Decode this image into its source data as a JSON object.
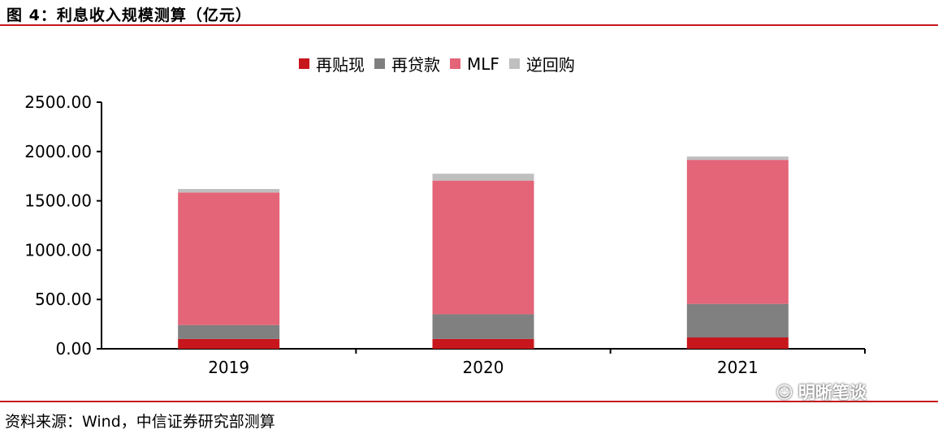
{
  "header": {
    "title": "图 4：利息收入规模测算（亿元）"
  },
  "footer": {
    "source": "资料来源：Wind，中信证券研究部测算"
  },
  "watermark": {
    "text": "明晰笔谈",
    "icon": "wechat-icon"
  },
  "colors": {
    "rule": "#c8161d"
  },
  "chart_data": {
    "type": "bar",
    "stacked": true,
    "categories": [
      "2019",
      "2020",
      "2021"
    ],
    "series": [
      {
        "name": "再贴现",
        "color": "#c8161d",
        "values": [
          100,
          100,
          115
        ]
      },
      {
        "name": "再贷款",
        "color": "#808080",
        "values": [
          140,
          250,
          340
        ]
      },
      {
        "name": "MLF",
        "color": "#e46478",
        "values": [
          1345,
          1355,
          1460
        ]
      },
      {
        "name": "逆回购",
        "color": "#bfbfbf",
        "values": [
          35,
          70,
          35
        ]
      }
    ],
    "yticks": [
      "0.00",
      "500.00",
      "1000.00",
      "1500.00",
      "2000.00",
      "2500.00"
    ],
    "ylim": [
      0,
      2500
    ],
    "grid": false,
    "legend_position": "top-center"
  }
}
